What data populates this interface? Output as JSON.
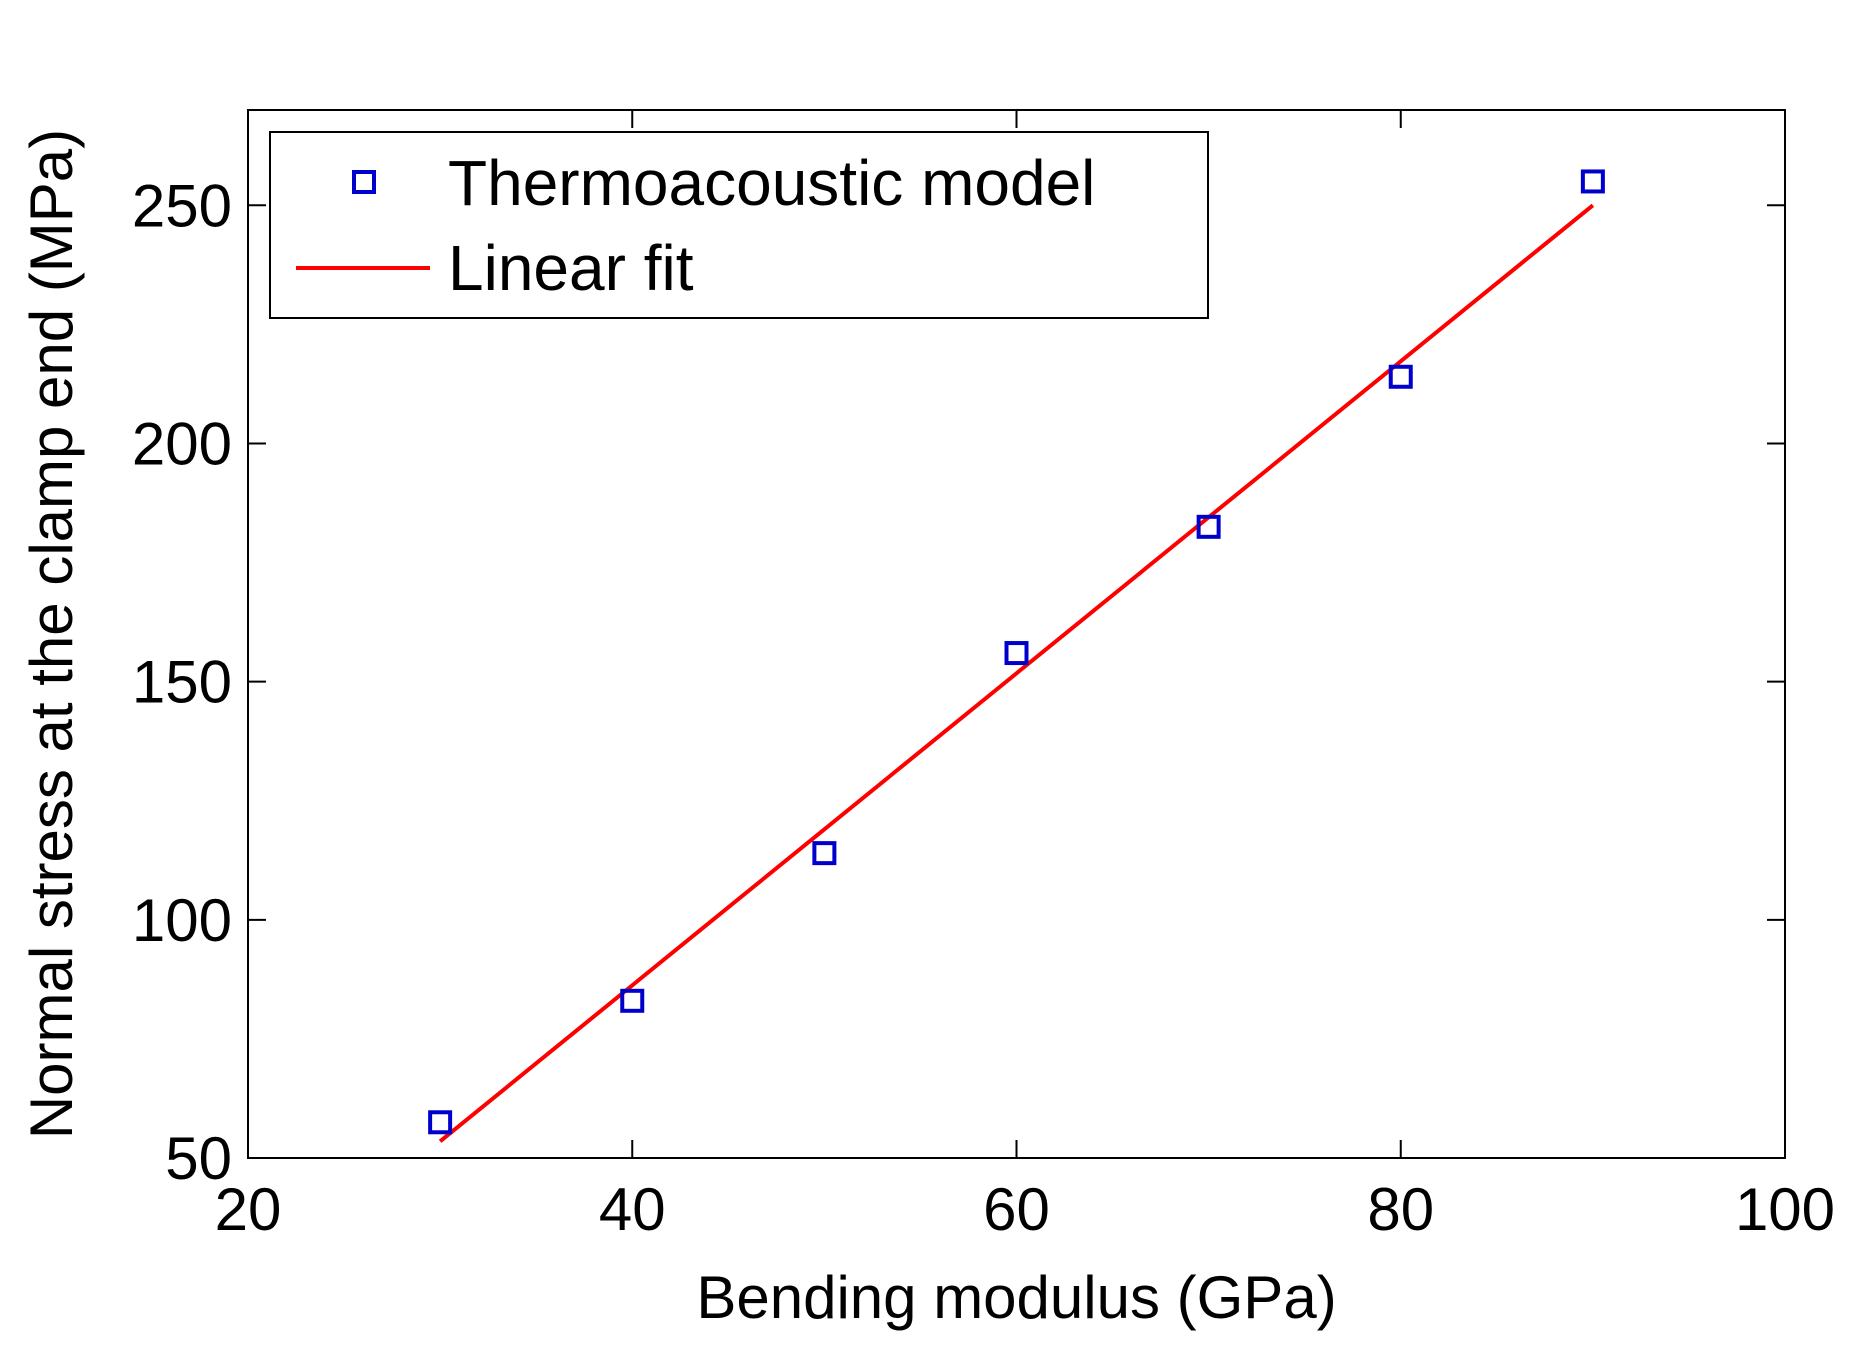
{
  "chart_data": {
    "type": "scatter",
    "title": "",
    "xlabel": "Bending modulus (GPa)",
    "ylabel": "Normal stress at the clamp end (MPa)",
    "xlim": [
      20,
      100
    ],
    "ylim": [
      50,
      270
    ],
    "xticks": [
      20,
      40,
      60,
      80,
      100
    ],
    "yticks": [
      50,
      100,
      150,
      200,
      250
    ],
    "grid": false,
    "legend_position": "top-left",
    "series": [
      {
        "name": "Thermoacoustic model",
        "kind": "markers",
        "marker": "square",
        "color": "#0000cc",
        "x": [
          30,
          40,
          50,
          60,
          70,
          80,
          90
        ],
        "y": [
          57.5,
          83,
          114,
          156,
          182.5,
          214,
          255
        ]
      },
      {
        "name": "Linear fit",
        "kind": "line",
        "color": "#ff0000",
        "x": [
          30,
          90
        ],
        "y": [
          53.5,
          250
        ]
      }
    ]
  }
}
